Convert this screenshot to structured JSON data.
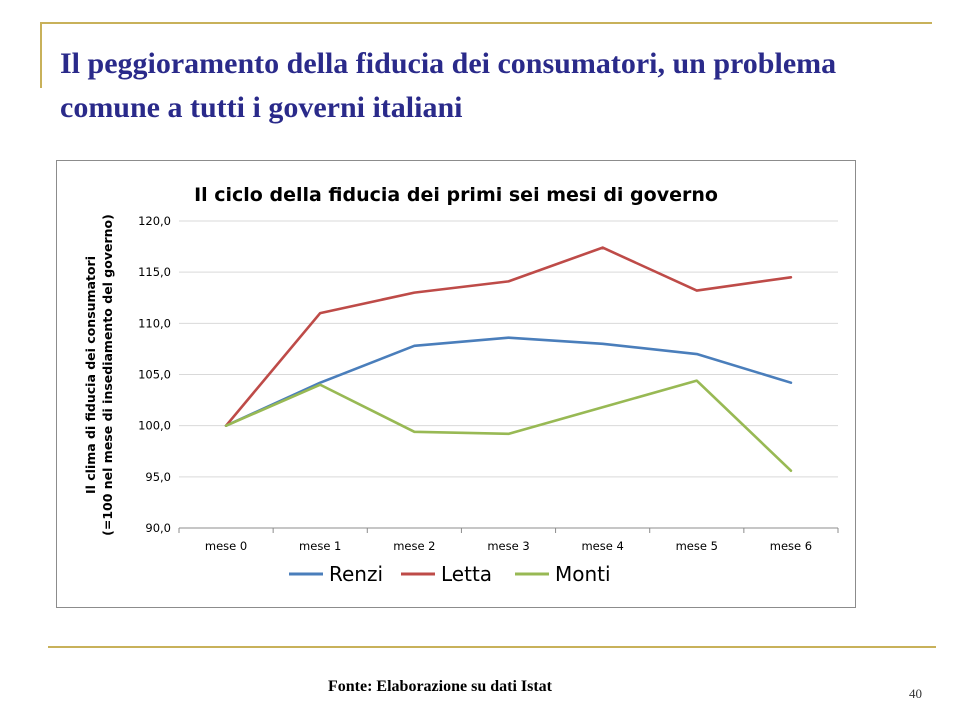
{
  "slide": {
    "title": "Il peggioramento della fiducia dei consumatori, un problema comune a tutti i governi italiani",
    "source": "Fonte: Elaborazione su dati Istat",
    "page_number": "40"
  },
  "chart_data": {
    "type": "line",
    "title": "Il ciclo della fiducia dei primi sei mesi di governo",
    "xlabel": "",
    "ylabel_line1": "Il clima di fiducia dei consumatori",
    "ylabel_line2": "(=100 nel mese  di insediamento del governo)",
    "categories": [
      "mese 0",
      "mese 1",
      "mese 2",
      "mese 3",
      "mese 4",
      "mese 5",
      "mese 6"
    ],
    "y_ticks": [
      "90,0",
      "95,0",
      "100,0",
      "105,0",
      "110,0",
      "115,0",
      "120,0"
    ],
    "ylim": [
      90,
      120
    ],
    "grid": true,
    "legend_position": "bottom",
    "series": [
      {
        "name": "Renzi",
        "color": "#4a7ebb",
        "values": [
          100.0,
          104.2,
          107.8,
          108.6,
          108.0,
          107.0,
          104.2
        ]
      },
      {
        "name": "Letta",
        "color": "#be4b48",
        "values": [
          100.0,
          111.0,
          113.0,
          114.1,
          117.4,
          113.2,
          114.5
        ]
      },
      {
        "name": "Monti",
        "color": "#98b954",
        "values": [
          100.0,
          104.0,
          99.4,
          99.2,
          101.8,
          104.4,
          95.6
        ]
      }
    ]
  }
}
